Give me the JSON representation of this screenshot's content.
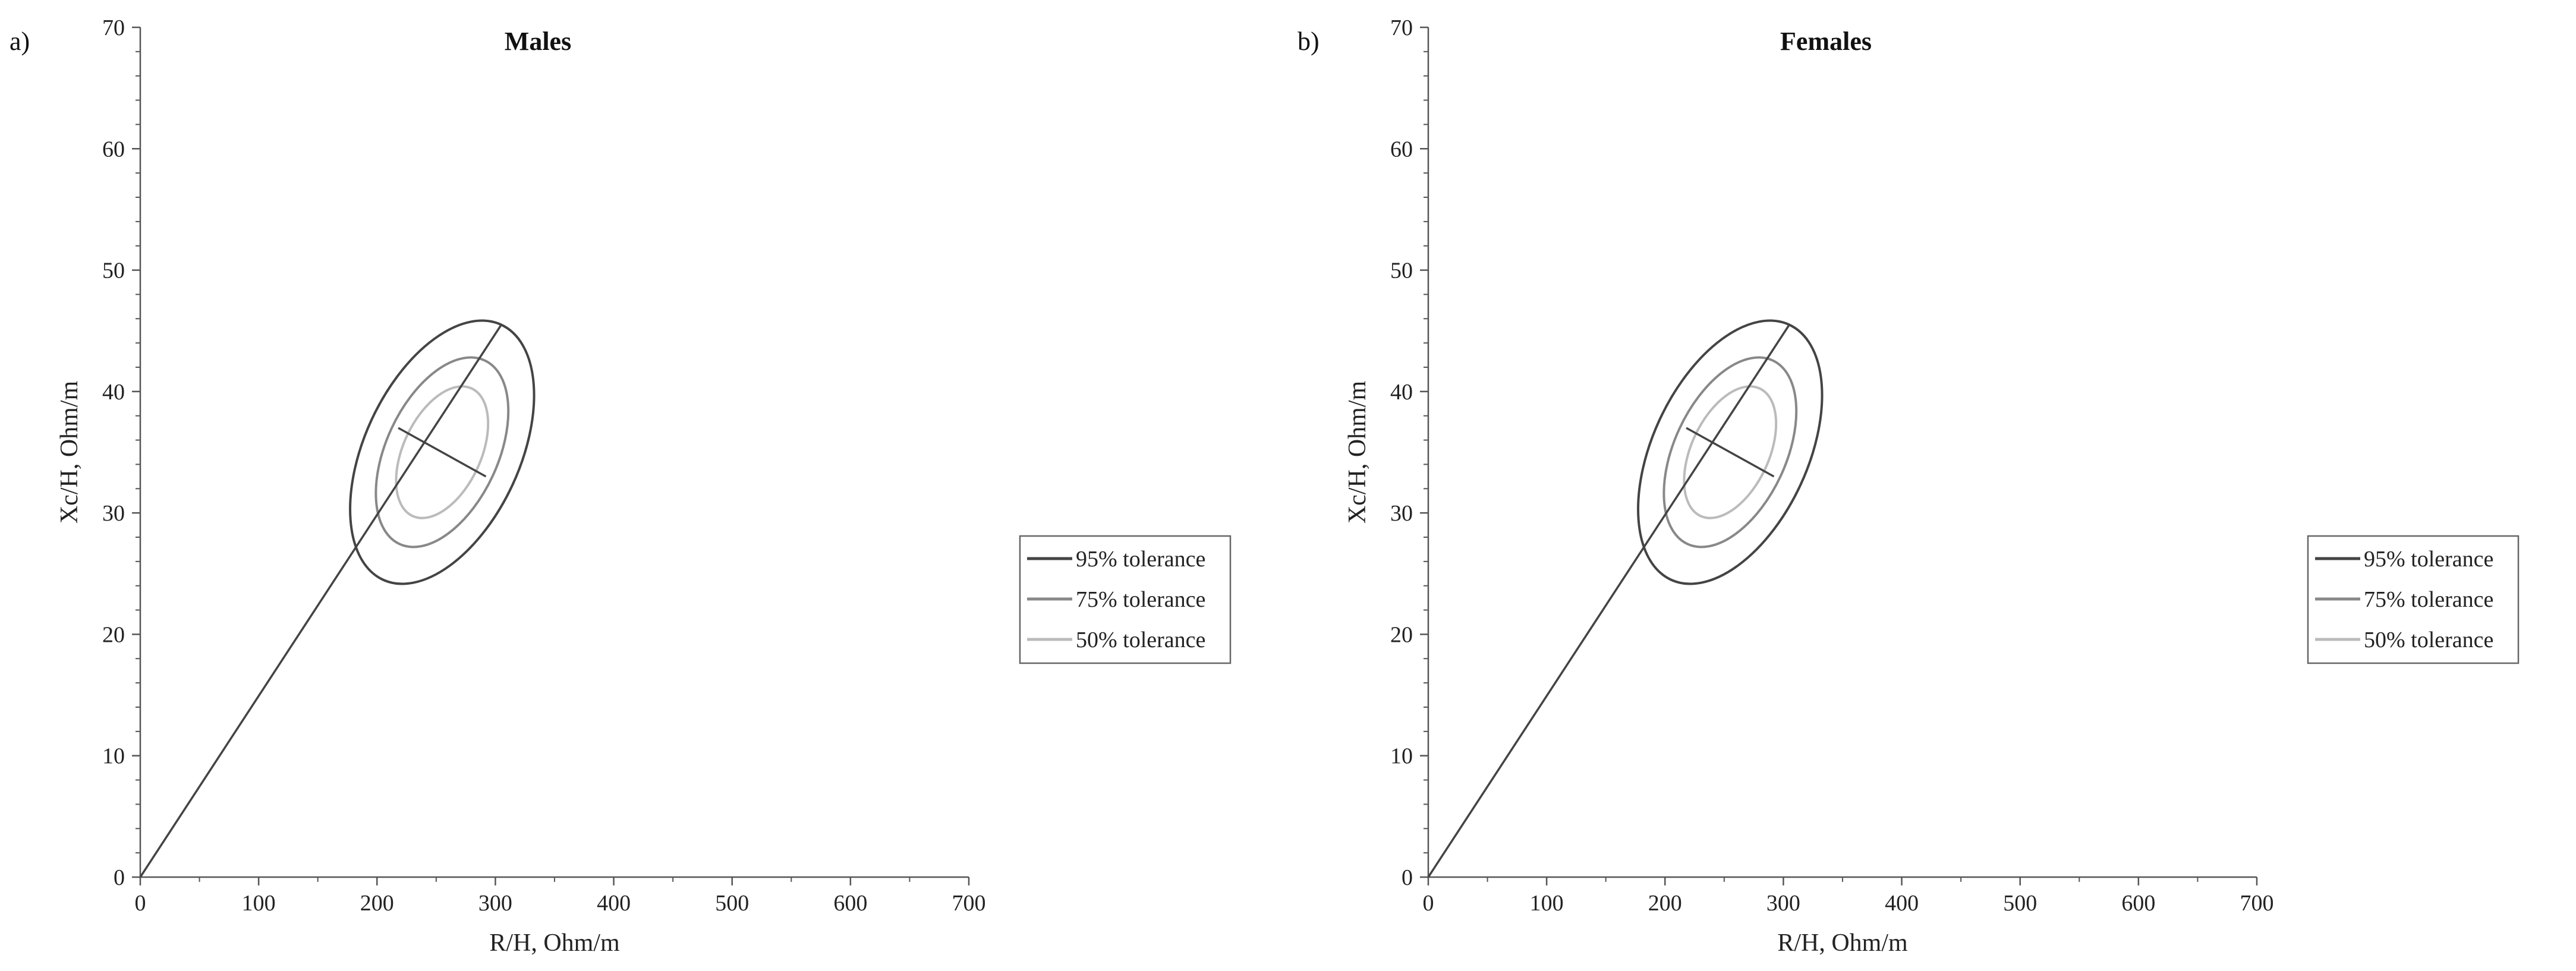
{
  "chart_data": [
    {
      "type": "scatter",
      "panel_label": "a)",
      "title": "Males",
      "xlabel": "R/H, Ohm/m",
      "ylabel": "Xc/H, Ohm/m",
      "xlim": [
        0,
        700
      ],
      "ylim": [
        0,
        70
      ],
      "x_ticks": [
        0,
        100,
        200,
        300,
        400,
        500,
        600,
        700
      ],
      "y_ticks": [
        0,
        10,
        20,
        30,
        40,
        50,
        60,
        70
      ],
      "center": [
        255,
        35
      ],
      "major_axis": [
        [
          0,
          0
        ],
        [
          305,
          45.5
        ]
      ],
      "minor_axis": [
        [
          218,
          37
        ],
        [
          292,
          33
        ]
      ],
      "series": [
        {
          "name": "95% tolerance",
          "color": "#444444",
          "a_frac": 1.0,
          "b_frac": 1.0
        },
        {
          "name": "75% tolerance",
          "color": "#888888",
          "a_frac": 0.72,
          "b_frac": 0.72
        },
        {
          "name": "50% tolerance",
          "color": "#bbbbbb",
          "a_frac": 0.5,
          "b_frac": 0.5
        }
      ],
      "legend_position": "right"
    },
    {
      "type": "scatter",
      "panel_label": "b)",
      "title": "Females",
      "xlabel": "R/H, Ohm/m",
      "ylabel": "Xc/H, Ohm/m",
      "xlim": [
        0,
        700
      ],
      "ylim": [
        0,
        70
      ],
      "x_ticks": [
        0,
        100,
        200,
        300,
        400,
        500,
        600,
        700
      ],
      "y_ticks": [
        0,
        10,
        20,
        30,
        40,
        50,
        60,
        70
      ],
      "center": [
        255,
        35
      ],
      "major_axis": [
        [
          0,
          0
        ],
        [
          305,
          45.5
        ]
      ],
      "minor_axis": [
        [
          218,
          37
        ],
        [
          292,
          33
        ]
      ],
      "series": [
        {
          "name": "95% tolerance",
          "color": "#444444",
          "a_frac": 1.0,
          "b_frac": 1.0
        },
        {
          "name": "75% tolerance",
          "color": "#888888",
          "a_frac": 0.72,
          "b_frac": 0.72
        },
        {
          "name": "50% tolerance",
          "color": "#bbbbbb",
          "a_frac": 0.5,
          "b_frac": 0.5
        }
      ],
      "legend_position": "right"
    }
  ]
}
